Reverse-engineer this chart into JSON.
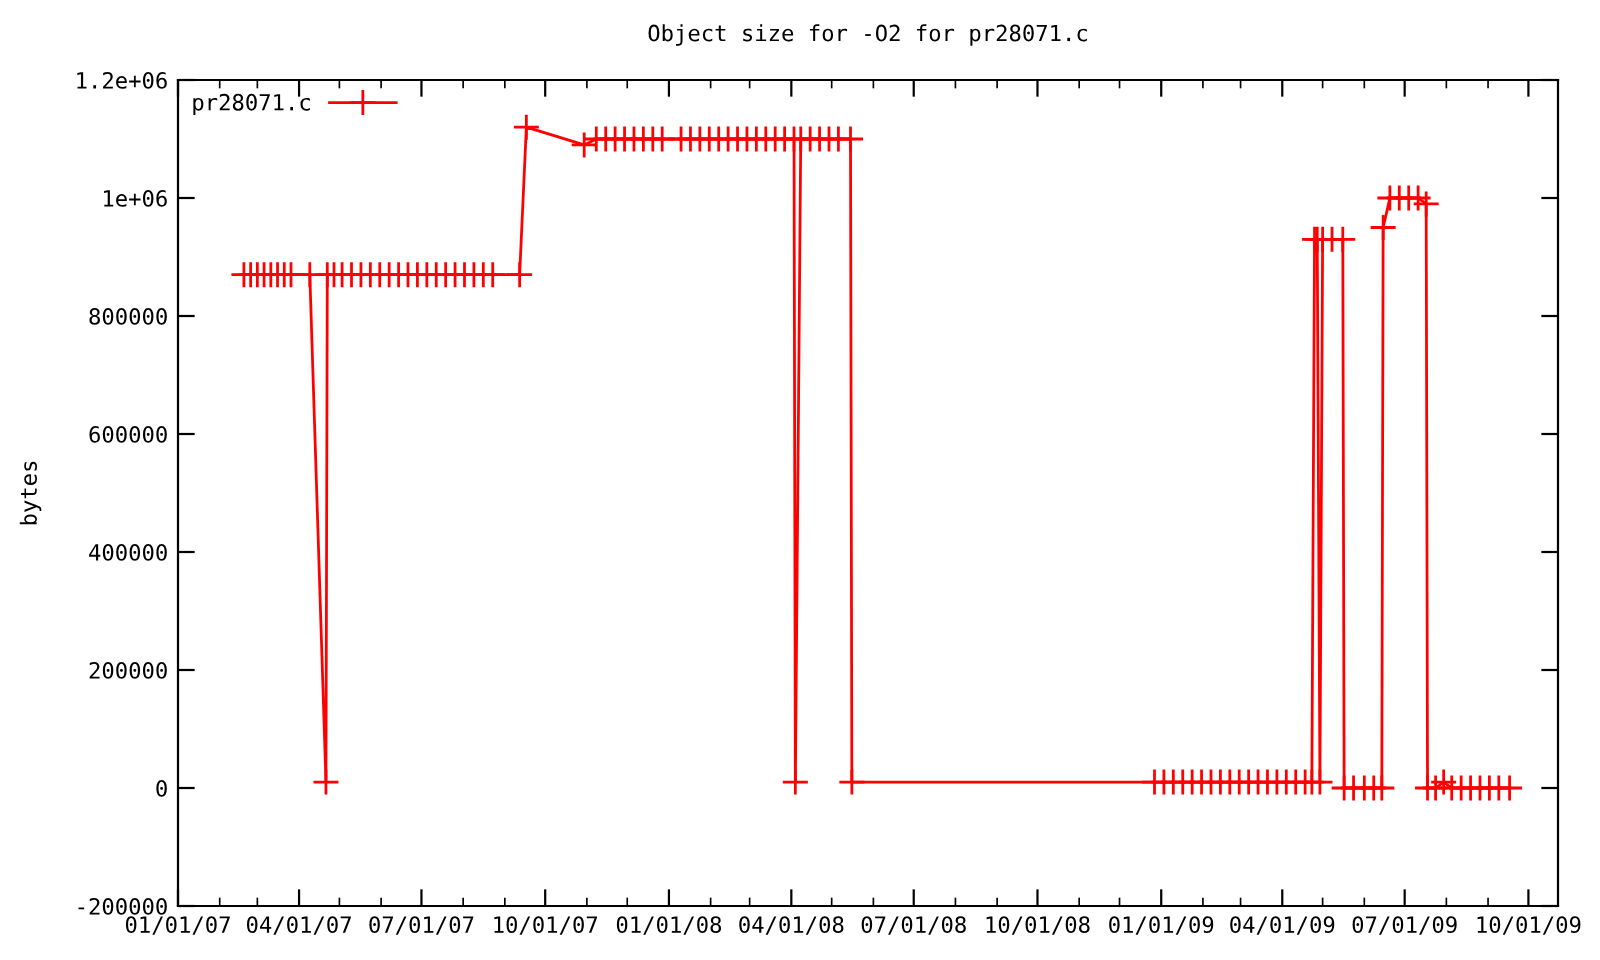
{
  "chart_data": {
    "type": "line",
    "title": "Object size for -O2 for pr28071.c",
    "ylabel": "bytes",
    "x": [
      "2007-02-19",
      "2007-02-24",
      "2007-03-01",
      "2007-03-06",
      "2007-03-11",
      "2007-03-16",
      "2007-03-21",
      "2007-03-26",
      "2007-04-09",
      "2007-04-21",
      "2007-04-22",
      "2007-04-27",
      "2007-05-03",
      "2007-05-10",
      "2007-05-17",
      "2007-05-24",
      "2007-05-31",
      "2007-06-07",
      "2007-06-14",
      "2007-06-21",
      "2007-06-28",
      "2007-07-05",
      "2007-07-12",
      "2007-07-19",
      "2007-07-26",
      "2007-08-02",
      "2007-08-09",
      "2007-08-16",
      "2007-08-23",
      "2007-09-12",
      "2007-09-17",
      "2007-10-30",
      "2007-11-08",
      "2007-11-15",
      "2007-11-22",
      "2007-11-29",
      "2007-12-06",
      "2007-12-13",
      "2007-12-20",
      "2007-12-27",
      "2008-01-10",
      "2008-01-17",
      "2008-01-24",
      "2008-01-31",
      "2008-02-07",
      "2008-02-14",
      "2008-02-21",
      "2008-02-28",
      "2008-03-06",
      "2008-03-13",
      "2008-03-20",
      "2008-03-27",
      "2008-04-03",
      "2008-04-04",
      "2008-04-08",
      "2008-04-15",
      "2008-04-22",
      "2008-04-29",
      "2008-05-06",
      "2008-05-15",
      "2008-05-16",
      "2008-12-27",
      "2009-01-03",
      "2009-01-10",
      "2009-01-17",
      "2009-01-24",
      "2009-01-31",
      "2009-02-07",
      "2009-02-14",
      "2009-02-21",
      "2009-02-28",
      "2009-03-07",
      "2009-03-14",
      "2009-03-21",
      "2009-03-28",
      "2009-04-04",
      "2009-04-11",
      "2009-04-18",
      "2009-04-23",
      "2009-04-25",
      "2009-04-27",
      "2009-04-29",
      "2009-05-01",
      "2009-05-08",
      "2009-05-16",
      "2009-05-17",
      "2009-05-24",
      "2009-06-01",
      "2009-06-08",
      "2009-06-14",
      "2009-06-15",
      "2009-06-20",
      "2009-06-27",
      "2009-07-04",
      "2009-07-11",
      "2009-07-17",
      "2009-07-18",
      "2009-07-24",
      "2009-07-30",
      "2009-08-05",
      "2009-08-12",
      "2009-08-19",
      "2009-08-26",
      "2009-09-02",
      "2009-09-09",
      "2009-09-17"
    ],
    "series": [
      {
        "name": "pr28071.c",
        "color": "#ff0000",
        "values": [
          870000,
          870000,
          870000,
          870000,
          870000,
          870000,
          870000,
          870000,
          870000,
          10000,
          870000,
          870000,
          870000,
          870000,
          870000,
          870000,
          870000,
          870000,
          870000,
          870000,
          870000,
          870000,
          870000,
          870000,
          870000,
          870000,
          870000,
          870000,
          870000,
          870000,
          1120000,
          1090000,
          1100000,
          1100000,
          1100000,
          1100000,
          1100000,
          1100000,
          1100000,
          1100000,
          1100000,
          1100000,
          1100000,
          1100000,
          1100000,
          1100000,
          1100000,
          1100000,
          1100000,
          1100000,
          1100000,
          1100000,
          1100000,
          10000,
          1100000,
          1100000,
          1100000,
          1100000,
          1100000,
          1100000,
          10000,
          10000,
          10000,
          10000,
          10000,
          10000,
          10000,
          10000,
          10000,
          10000,
          10000,
          10000,
          10000,
          10000,
          10000,
          10000,
          10000,
          10000,
          10000,
          930000,
          930000,
          10000,
          930000,
          930000,
          930000,
          0,
          0,
          0,
          0,
          0,
          950000,
          1000000,
          1000000,
          1000000,
          1000000,
          990000,
          0,
          0,
          10000,
          0,
          0,
          0,
          0,
          0,
          0,
          0
        ]
      }
    ],
    "xlim": [
      "2007-01-01",
      "2009-10-23"
    ],
    "xticks": [
      {
        "value": "2007-01-01",
        "label": "01/01/07"
      },
      {
        "value": "2007-04-01",
        "label": "04/01/07"
      },
      {
        "value": "2007-07-01",
        "label": "07/01/07"
      },
      {
        "value": "2007-10-01",
        "label": "10/01/07"
      },
      {
        "value": "2008-01-01",
        "label": "01/01/08"
      },
      {
        "value": "2008-04-01",
        "label": "04/01/08"
      },
      {
        "value": "2008-07-01",
        "label": "07/01/08"
      },
      {
        "value": "2008-10-01",
        "label": "10/01/08"
      },
      {
        "value": "2009-01-01",
        "label": "01/01/09"
      },
      {
        "value": "2009-04-01",
        "label": "04/01/09"
      },
      {
        "value": "2009-07-01",
        "label": "07/01/09"
      },
      {
        "value": "2009-10-01",
        "label": "10/01/09"
      }
    ],
    "ylim": [
      -200000,
      1200000
    ],
    "yticks": [
      -200000,
      0,
      200000,
      400000,
      600000,
      800000,
      {
        "value": 1000000,
        "label": "1e+06"
      },
      {
        "value": 1200000,
        "label": "1.2e+06"
      }
    ],
    "grid": false,
    "legend": "top left",
    "marker": "cross",
    "line_style": "solid"
  }
}
